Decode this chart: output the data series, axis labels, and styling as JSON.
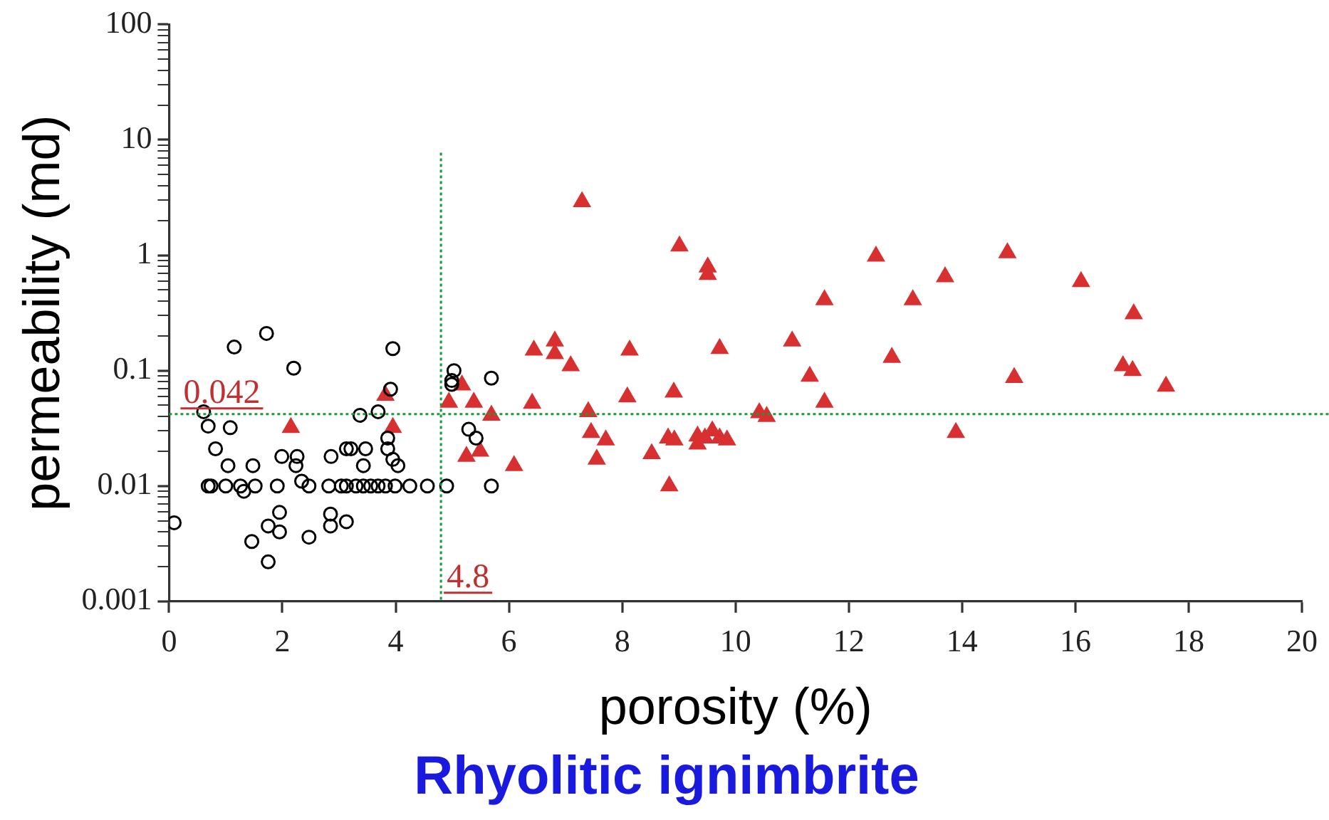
{
  "chart_data": {
    "type": "scatter",
    "xlabel": "porosity (%)",
    "ylabel": "permeability (md)",
    "annotations": [
      "Rhyolitic ignimbrite"
    ],
    "log": "y",
    "grid": false,
    "legend": false,
    "xlim": [
      0,
      20
    ],
    "xticks": [
      0,
      2,
      4,
      6,
      8,
      10,
      12,
      14,
      16,
      18,
      20
    ],
    "ylim": [
      0.001,
      100
    ],
    "yticks": [
      0.001,
      0.01,
      0.1,
      1,
      10,
      100,
      {
        "value": 0.002,
        "label": null
      },
      {
        "value": 0.003,
        "label": null
      },
      {
        "value": 0.004,
        "label": null
      },
      {
        "value": 0.005,
        "label": null
      },
      {
        "value": 0.006,
        "label": null
      },
      {
        "value": 0.007,
        "label": null
      },
      {
        "value": 0.008,
        "label": null
      },
      {
        "value": 0.009,
        "label": null
      },
      {
        "value": 0.02,
        "label": null
      },
      {
        "value": 0.03,
        "label": null
      },
      {
        "value": 0.04,
        "label": null
      },
      {
        "value": 0.05,
        "label": null
      },
      {
        "value": 0.06,
        "label": null
      },
      {
        "value": 0.07,
        "label": null
      },
      {
        "value": 0.08,
        "label": null
      },
      {
        "value": 0.09,
        "label": null
      },
      {
        "value": 0.2,
        "label": null
      },
      {
        "value": 0.3,
        "label": null
      },
      {
        "value": 0.4,
        "label": null
      },
      {
        "value": 0.5,
        "label": null
      },
      {
        "value": 0.6,
        "label": null
      },
      {
        "value": 0.7,
        "label": null
      },
      {
        "value": 0.8,
        "label": null
      },
      {
        "value": 0.9,
        "label": null
      },
      {
        "value": 2,
        "label": null
      },
      {
        "value": 3,
        "label": null
      },
      {
        "value": 4,
        "label": null
      },
      {
        "value": 5,
        "label": null
      },
      {
        "value": 6,
        "label": null
      },
      {
        "value": 7,
        "label": null
      },
      {
        "value": 8,
        "label": null
      },
      {
        "value": 9,
        "label": null
      },
      {
        "value": 20,
        "label": null
      },
      {
        "value": 30,
        "label": null
      },
      {
        "value": 40,
        "label": null
      },
      {
        "value": 50,
        "label": null
      },
      {
        "value": 60,
        "label": null
      },
      {
        "value": 70,
        "label": null
      },
      {
        "value": 80,
        "label": null
      },
      {
        "value": 90,
        "label": null
      }
    ],
    "ref_lines": [
      {
        "axis": "y",
        "value": 0.042,
        "label": "0.042",
        "color": "#1a9a3a",
        "line_style": "dotted"
      },
      {
        "axis": "x",
        "value": 4.8,
        "label": "4.8",
        "color": "#1a9a3a",
        "line_style": "dotted"
      }
    ],
    "series": [
      {
        "marker": "circle",
        "color": "#000000",
        "x": [
          0.09,
          0.61,
          0.69,
          1.15,
          1.72,
          2.2,
          1.08,
          0.82,
          1.04,
          1.48,
          1.99,
          2.26,
          2.24,
          2.34,
          0.69,
          0.74,
          1.0,
          1.26,
          1.52,
          1.91,
          2.47,
          2.82,
          3.04,
          3.13,
          3.3,
          3.43,
          3.56,
          3.69,
          3.82,
          3.99,
          4.25,
          4.56,
          4.9,
          5.69,
          1.32,
          2.47,
          1.46,
          1.75,
          1.75,
          1.95,
          1.95,
          2.86,
          2.85,
          2.85,
          3.13,
          3.13,
          3.21,
          3.43,
          3.47,
          3.37,
          3.69,
          3.91,
          3.95,
          3.86,
          3.86,
          3.95,
          4.04,
          5.03,
          4.99,
          4.99,
          5.69,
          5.29,
          5.42
        ],
        "values": [
          0.0048,
          0.044,
          0.033,
          0.16,
          0.21,
          0.105,
          0.032,
          0.021,
          0.015,
          0.015,
          0.018,
          0.018,
          0.015,
          0.011,
          0.01,
          0.01,
          0.01,
          0.01,
          0.01,
          0.01,
          0.01,
          0.01,
          0.01,
          0.01,
          0.01,
          0.01,
          0.01,
          0.01,
          0.01,
          0.01,
          0.01,
          0.01,
          0.01,
          0.01,
          0.009,
          0.0036,
          0.0033,
          0.0022,
          0.0045,
          0.0059,
          0.004,
          0.018,
          0.0057,
          0.0045,
          0.0049,
          0.021,
          0.021,
          0.015,
          0.021,
          0.041,
          0.044,
          0.069,
          0.155,
          0.026,
          0.021,
          0.017,
          0.015,
          0.1,
          0.082,
          0.076,
          0.086,
          0.031,
          0.026
        ]
      },
      {
        "marker": "triangle",
        "color": "#d83030",
        "x": [
          3.82,
          2.15,
          3.95,
          5.17,
          4.94,
          5.38,
          5.69,
          5.25,
          5.49,
          6.09,
          7.29,
          9.01,
          9.51,
          9.51,
          12.48,
          11.57,
          13.13,
          6.44,
          6.81,
          6.81,
          7.09,
          8.13,
          9.72,
          11.0,
          11.31,
          12.76,
          6.41,
          7.4,
          8.09,
          8.91,
          11.57,
          10.42,
          10.55,
          7.45,
          7.71,
          7.55,
          8.52,
          8.81,
          8.92,
          8.83,
          9.33,
          9.33,
          9.46,
          9.59,
          9.72,
          9.85,
          14.8,
          13.7,
          16.1,
          17.03,
          14.92,
          16.84,
          17.01,
          17.6,
          13.89
        ],
        "values": [
          0.061,
          0.032,
          0.032,
          0.075,
          0.053,
          0.053,
          0.041,
          0.018,
          0.02,
          0.015,
          2.9,
          1.2,
          0.79,
          0.68,
          0.98,
          0.41,
          0.41,
          0.15,
          0.18,
          0.14,
          0.11,
          0.15,
          0.155,
          0.18,
          0.089,
          0.13,
          0.052,
          0.044,
          0.059,
          0.065,
          0.053,
          0.043,
          0.04,
          0.029,
          0.025,
          0.017,
          0.019,
          0.026,
          0.025,
          0.01,
          0.027,
          0.023,
          0.026,
          0.03,
          0.026,
          0.025,
          1.05,
          0.65,
          0.59,
          0.31,
          0.087,
          0.11,
          0.1,
          0.073,
          0.029
        ]
      }
    ]
  }
}
